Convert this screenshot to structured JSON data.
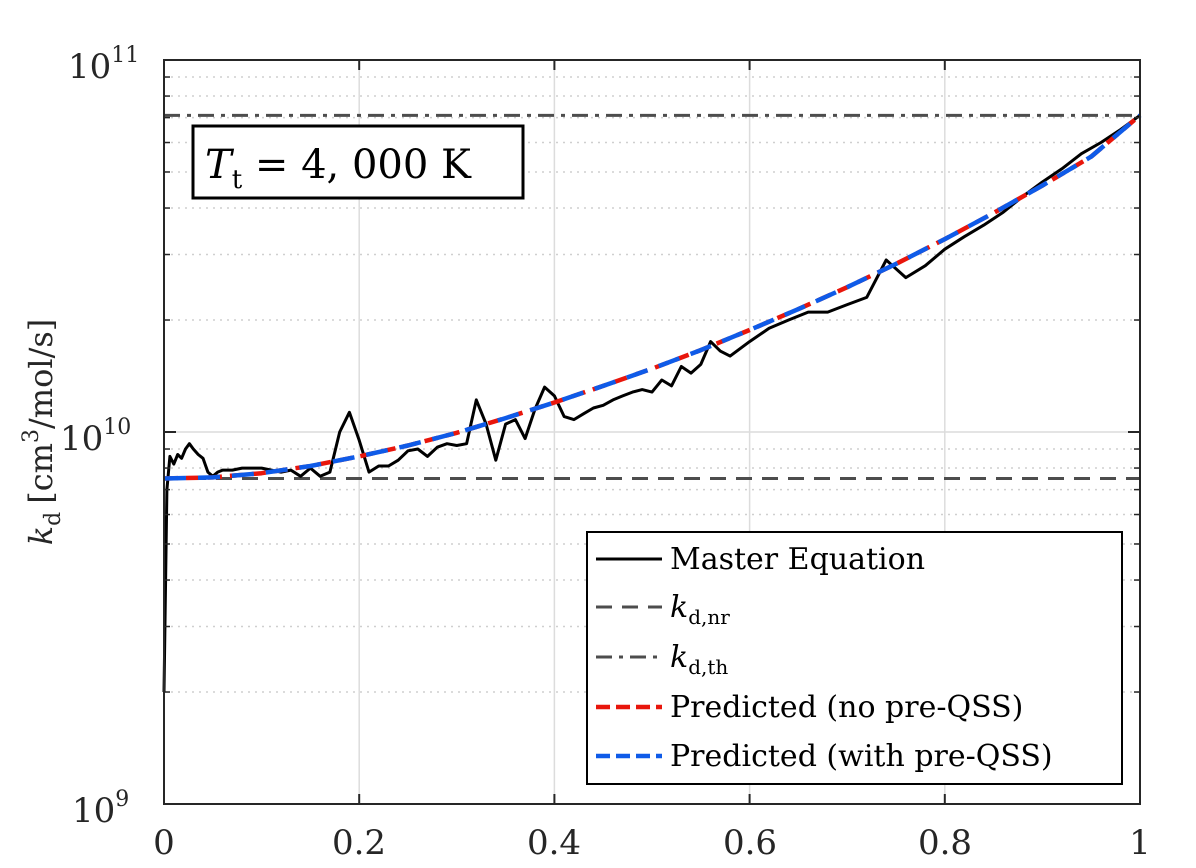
{
  "chart_data": {
    "type": "line",
    "yscale": "log",
    "xlim": [
      0,
      1
    ],
    "ylim": [
      1000000000.0,
      100000000000.0
    ],
    "xticks": [
      0,
      0.2,
      0.4,
      0.6,
      0.8,
      1
    ],
    "xtick_labels": [
      "0",
      "0.2",
      "0.4",
      "0.6",
      "0.8",
      "1"
    ],
    "yticks": [
      {
        "value": 1000000000.0,
        "base": "10",
        "exp": "9"
      },
      {
        "value": 10000000000.0,
        "base": "10",
        "exp": "10"
      },
      {
        "value": 100000000000.0,
        "base": "10",
        "exp": "11"
      }
    ],
    "ylabel": {
      "var": "k",
      "sub": "d",
      "unit_pre": "[cm",
      "unit_exp": "3",
      "unit_post": "/mol/s]"
    },
    "xlabel": "",
    "grid": true,
    "annotation": {
      "var": "T",
      "sub": "t",
      "text": " = 4, 000 K"
    },
    "legend_location": "bottom-right",
    "series": [
      {
        "name": "Master Equation",
        "label_text": "Master Equation",
        "color": "#000000",
        "dash": "solid",
        "x": [
          0,
          0.003,
          0.006,
          0.01,
          0.014,
          0.018,
          0.022,
          0.026,
          0.03,
          0.035,
          0.04,
          0.045,
          0.05,
          0.055,
          0.06,
          0.07,
          0.08,
          0.09,
          0.1,
          0.11,
          0.12,
          0.13,
          0.14,
          0.15,
          0.16,
          0.17,
          0.18,
          0.19,
          0.2,
          0.21,
          0.22,
          0.23,
          0.24,
          0.25,
          0.26,
          0.27,
          0.28,
          0.29,
          0.3,
          0.31,
          0.32,
          0.33,
          0.34,
          0.35,
          0.36,
          0.37,
          0.38,
          0.39,
          0.4,
          0.41,
          0.42,
          0.43,
          0.44,
          0.45,
          0.46,
          0.47,
          0.48,
          0.49,
          0.5,
          0.51,
          0.52,
          0.53,
          0.54,
          0.55,
          0.56,
          0.57,
          0.58,
          0.6,
          0.62,
          0.64,
          0.66,
          0.68,
          0.7,
          0.72,
          0.74,
          0.76,
          0.78,
          0.8,
          0.82,
          0.84,
          0.86,
          0.88,
          0.9,
          0.92,
          0.94,
          0.96,
          0.98,
          1.0
        ],
        "y": [
          2000000000.0,
          7000000000.0,
          8600000000.0,
          8200000000.0,
          8700000000.0,
          8500000000.0,
          9000000000.0,
          9300000000.0,
          9000000000.0,
          8700000000.0,
          8500000000.0,
          7800000000.0,
          7600000000.0,
          7800000000.0,
          7900000000.0,
          7900000000.0,
          8000000000.0,
          8000000000.0,
          8000000000.0,
          7900000000.0,
          7800000000.0,
          7900000000.0,
          7600000000.0,
          8000000000.0,
          7600000000.0,
          7800000000.0,
          10000000000.0,
          11300000000.0,
          9500000000.0,
          7800000000.0,
          8100000000.0,
          8100000000.0,
          8400000000.0,
          8900000000.0,
          9000000000.0,
          8600000000.0,
          9100000000.0,
          9300000000.0,
          9200000000.0,
          9300000000.0,
          12200000000.0,
          10500000000.0,
          8400000000.0,
          10500000000.0,
          10800000000.0,
          9600000000.0,
          11500000000.0,
          13200000000.0,
          12500000000.0,
          11000000000.0,
          10800000000.0,
          11200000000.0,
          11600000000.0,
          11800000000.0,
          12200000000.0,
          12500000000.0,
          12800000000.0,
          13000000000.0,
          12800000000.0,
          13800000000.0,
          13300000000.0,
          15000000000.0,
          14400000000.0,
          15200000000.0,
          17500000000.0,
          16500000000.0,
          16000000000.0,
          17500000000.0,
          19000000000.0,
          20000000000.0,
          21000000000.0,
          21000000000.0,
          22000000000.0,
          23000000000.0,
          29000000000.0,
          26000000000.0,
          28000000000.0,
          31000000000.0,
          33500000000.0,
          36000000000.0,
          39000000000.0,
          43000000000.0,
          47000000000.0,
          51000000000.0,
          56000000000.0,
          60000000000.0,
          65000000000.0,
          71000000000.0
        ]
      },
      {
        "name": "k_d,nr",
        "label_var": "k",
        "label_sub": "d,nr",
        "color": "#4d4d4d",
        "dash": "dashed",
        "value": 7500000000.0
      },
      {
        "name": "k_d,th",
        "label_var": "k",
        "label_sub": "d,th",
        "color": "#4d4d4d",
        "dash": "dashdot",
        "value": 71000000000.0
      },
      {
        "name": "Predicted (no pre-QSS)",
        "label_text": "Predicted (no pre-QSS)",
        "color": "#e8160c",
        "dash": "dashed",
        "x": [
          0,
          0.05,
          0.1,
          0.15,
          0.2,
          0.25,
          0.3,
          0.35,
          0.4,
          0.45,
          0.5,
          0.55,
          0.6,
          0.65,
          0.7,
          0.75,
          0.8,
          0.85,
          0.9,
          0.95,
          1.0
        ],
        "y": [
          7500000000.0,
          7550000000.0,
          7750000000.0,
          8100000000.0,
          8600000000.0,
          9200000000.0,
          9950000000.0,
          10900000000.0,
          12000000000.0,
          13300000000.0,
          14800000000.0,
          16600000000.0,
          18800000000.0,
          21400000000.0,
          24500000000.0,
          28300000000.0,
          33000000000.0,
          38800000000.0,
          46000000000.0,
          55000000000.0,
          71000000000.0
        ]
      },
      {
        "name": "Predicted (with pre-QSS)",
        "label_text": "Predicted (with pre-QSS)",
        "color": "#0f5be8",
        "dash": "dashed",
        "x": [
          0,
          0.05,
          0.1,
          0.15,
          0.2,
          0.25,
          0.3,
          0.35,
          0.4,
          0.45,
          0.5,
          0.55,
          0.6,
          0.65,
          0.7,
          0.75,
          0.8,
          0.85,
          0.9,
          0.95,
          1.0
        ],
        "y": [
          7500000000.0,
          7550000000.0,
          7750000000.0,
          8100000000.0,
          8600000000.0,
          9200000000.0,
          9950000000.0,
          10900000000.0,
          12000000000.0,
          13300000000.0,
          14800000000.0,
          16600000000.0,
          18800000000.0,
          21400000000.0,
          24500000000.0,
          28300000000.0,
          33000000000.0,
          38800000000.0,
          46000000000.0,
          55000000000.0,
          71000000000.0
        ]
      }
    ]
  }
}
